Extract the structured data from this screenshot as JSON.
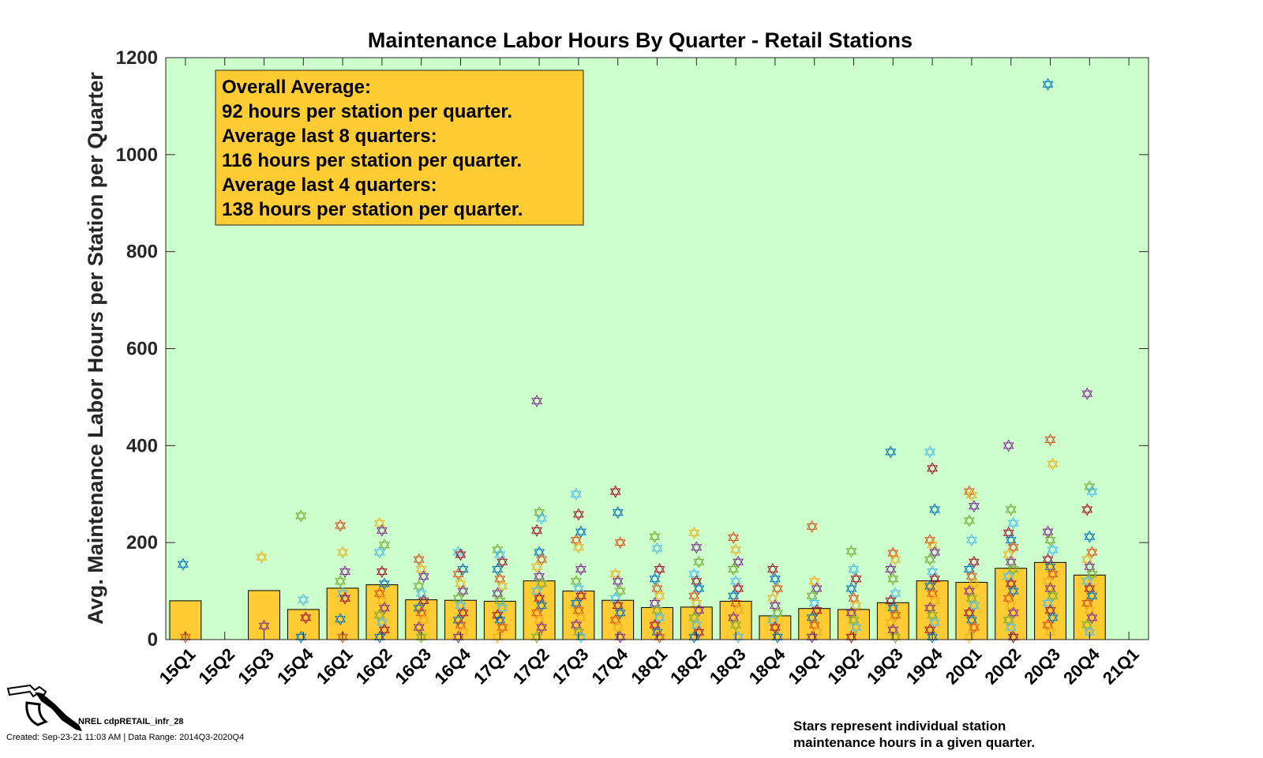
{
  "chart_data": {
    "type": "bar",
    "title": "Maintenance Labor Hours By Quarter - Retail Stations",
    "xlabel": "",
    "ylabel": "Avg. Maintenance Labor Hours per Station per Quarter",
    "ylim": [
      0,
      1200
    ],
    "yticks": [
      "0",
      "200",
      "400",
      "600",
      "800",
      "1000",
      "1200"
    ],
    "grid": false,
    "background_color": "#ccffcc",
    "bar_color": "#ffcc33",
    "categories": [
      "15Q1",
      "15Q2",
      "15Q3",
      "15Q4",
      "16Q1",
      "16Q2",
      "16Q3",
      "16Q4",
      "17Q1",
      "17Q2",
      "17Q3",
      "17Q4",
      "18Q1",
      "18Q2",
      "18Q3",
      "18Q4",
      "19Q1",
      "19Q2",
      "19Q3",
      "19Q4",
      "20Q1",
      "20Q2",
      "20Q3",
      "20Q4",
      "21Q1"
    ],
    "values": [
      80,
      null,
      101,
      62,
      106,
      113,
      82,
      81,
      79,
      121,
      100,
      81,
      66,
      67,
      79,
      49,
      64,
      62,
      76,
      121,
      118,
      147,
      159,
      133,
      null
    ],
    "scatter_series": {
      "description_on_chart": "Stars represent individual station maintenance hours in a given quarter.",
      "marker": "star",
      "colors": [
        "#0072bd",
        "#d95319",
        "#edb120",
        "#7e2f8e",
        "#77ac30",
        "#4dbeee",
        "#a2142f"
      ],
      "points_by_quarter": [
        [
          155,
          5
        ],
        [],
        [
          170,
          28
        ],
        [
          255,
          82,
          45,
          5
        ],
        [
          235,
          180,
          140,
          120,
          95,
          85,
          42,
          5
        ],
        [
          240,
          225,
          195,
          180,
          140,
          115,
          95,
          80,
          65,
          50,
          35,
          20,
          5
        ],
        [
          165,
          145,
          130,
          110,
          95,
          80,
          65,
          55,
          40,
          25,
          5
        ],
        [
          180,
          175,
          145,
          135,
          115,
          100,
          85,
          70,
          55,
          40,
          30,
          15,
          5
        ],
        [
          185,
          175,
          160,
          145,
          125,
          110,
          95,
          80,
          65,
          50,
          40,
          25,
          5
        ],
        [
          492,
          262,
          250,
          225,
          180,
          165,
          150,
          130,
          115,
          100,
          85,
          70,
          55,
          40,
          25,
          5
        ],
        [
          300,
          258,
          222,
          205,
          190,
          145,
          120,
          105,
          90,
          75,
          60,
          45,
          30,
          15,
          5
        ],
        [
          305,
          262,
          200,
          135,
          120,
          100,
          85,
          70,
          55,
          40,
          25,
          5
        ],
        [
          212,
          188,
          145,
          125,
          105,
          90,
          75,
          60,
          45,
          30,
          15,
          5
        ],
        [
          220,
          190,
          160,
          135,
          120,
          105,
          90,
          75,
          60,
          45,
          30,
          15,
          5
        ],
        [
          210,
          185,
          160,
          145,
          120,
          105,
          90,
          75,
          60,
          45,
          30,
          5
        ],
        [
          145,
          125,
          105,
          85,
          70,
          55,
          40,
          25,
          5
        ],
        [
          233,
          120,
          105,
          90,
          75,
          60,
          45,
          30,
          15,
          5
        ],
        [
          182,
          145,
          125,
          105,
          85,
          70,
          55,
          40,
          25,
          5
        ],
        [
          387,
          178,
          165,
          145,
          125,
          95,
          80,
          65,
          50,
          35,
          20,
          5
        ],
        [
          387,
          353,
          268,
          205,
          195,
          180,
          165,
          140,
          125,
          110,
          95,
          80,
          65,
          50,
          35,
          20,
          5
        ],
        [
          305,
          298,
          275,
          245,
          205,
          160,
          145,
          130,
          115,
          100,
          85,
          70,
          55,
          40,
          25,
          5
        ],
        [
          400,
          268,
          240,
          220,
          205,
          190,
          175,
          160,
          145,
          130,
          115,
          100,
          85,
          70,
          55,
          40,
          25,
          5
        ],
        [
          1145,
          412,
          362,
          222,
          205,
          185,
          165,
          150,
          135,
          120,
          105,
          90,
          75,
          60,
          45,
          30,
          15
        ],
        [
          507,
          315,
          305,
          268,
          212,
          180,
          165,
          150,
          135,
          120,
          105,
          90,
          75,
          60,
          45,
          30,
          15
        ],
        []
      ]
    }
  },
  "annotation_box": {
    "lines": [
      "Overall Average:",
      "92 hours per station per quarter.",
      "Average last 8 quarters:",
      "116 hours per station per quarter.",
      "Average last 4 quarters:",
      "138 hours per station per quarter."
    ]
  },
  "footer": {
    "program_id": "NREL cdpRETAIL_infr_28",
    "created": "Created: Sep-23-21 11:03 AM | Data Range: 2014Q3-2020Q4",
    "note_line1": "Stars represent individual station",
    "note_line2": "maintenance hours in a given quarter."
  },
  "logo": {
    "icon": "fuel-nozzle-icon"
  }
}
